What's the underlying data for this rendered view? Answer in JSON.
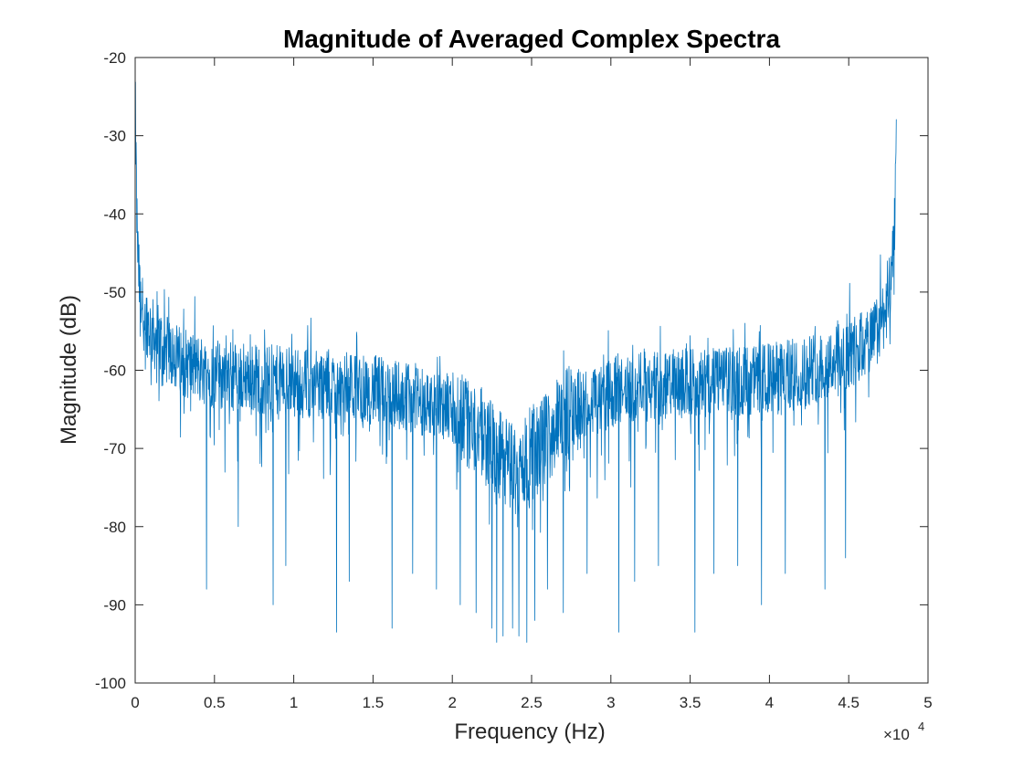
{
  "chart_data": {
    "type": "line",
    "title": "Magnitude of Averaged Complex Spectra",
    "xlabel": "Frequency (Hz)",
    "ylabel": "Magnitude (dB)",
    "xlim": [
      0,
      50000
    ],
    "ylim": [
      -100,
      -20
    ],
    "x_ticks": [
      0,
      5000,
      10000,
      15000,
      20000,
      25000,
      30000,
      35000,
      40000,
      45000,
      50000
    ],
    "x_tick_labels": [
      "0",
      "0.5",
      "1",
      "1.5",
      "2",
      "2.5",
      "3",
      "3.5",
      "4",
      "4.5",
      "5"
    ],
    "x_exponent_base": "×10",
    "x_exponent_power": "4",
    "y_ticks": [
      -20,
      -30,
      -40,
      -50,
      -60,
      -70,
      -80,
      -90,
      -100
    ],
    "y_tick_labels": [
      "-20",
      "-30",
      "-40",
      "-50",
      "-60",
      "-70",
      "-80",
      "-90",
      "-100"
    ],
    "grid": false,
    "line_color": "#0072BD",
    "series": [
      {
        "x": [
          0,
          100,
          200,
          300,
          500,
          1000,
          2000,
          3000,
          5000,
          7500,
          10000,
          12500,
          15000,
          17500,
          20000,
          21000,
          22000,
          23000,
          24000,
          25000,
          26000,
          27000,
          28000,
          30000,
          32500,
          35000,
          37500,
          40000,
          42500,
          45000,
          46500,
          47000,
          47500,
          47800,
          47900,
          48000
        ],
        "values": [
          -24.5,
          -40,
          -47,
          -50,
          -52.5,
          -55,
          -57.5,
          -59,
          -60.5,
          -61,
          -61.5,
          -62,
          -62.5,
          -63.5,
          -65,
          -66.5,
          -68.5,
          -71,
          -73,
          -71,
          -68.5,
          -66,
          -64.5,
          -63,
          -62,
          -61.5,
          -61.5,
          -61,
          -60,
          -58,
          -56,
          -54,
          -51,
          -46,
          -40,
          -29.5
        ]
      }
    ],
    "drop_outs": [
      [
        4500,
        -88
      ],
      [
        6500,
        -80
      ],
      [
        8700,
        -90
      ],
      [
        9500,
        -85
      ],
      [
        12700,
        -93.5
      ],
      [
        13500,
        -87
      ],
      [
        16200,
        -93
      ],
      [
        17500,
        -86
      ],
      [
        19000,
        -88
      ],
      [
        20500,
        -90
      ],
      [
        21500,
        -91
      ],
      [
        22500,
        -93
      ],
      [
        22800,
        -94.8
      ],
      [
        23200,
        -94
      ],
      [
        23800,
        -93
      ],
      [
        24200,
        -94
      ],
      [
        24700,
        -94.8
      ],
      [
        25200,
        -92
      ],
      [
        26000,
        -88
      ],
      [
        27000,
        -91
      ],
      [
        28500,
        -86
      ],
      [
        30500,
        -93.5
      ],
      [
        31500,
        -87
      ],
      [
        33000,
        -85
      ],
      [
        35300,
        -93.5
      ],
      [
        36500,
        -86
      ],
      [
        38000,
        -85
      ],
      [
        39500,
        -90
      ],
      [
        41000,
        -86
      ],
      [
        43500,
        -88
      ],
      [
        44800,
        -84
      ]
    ]
  }
}
